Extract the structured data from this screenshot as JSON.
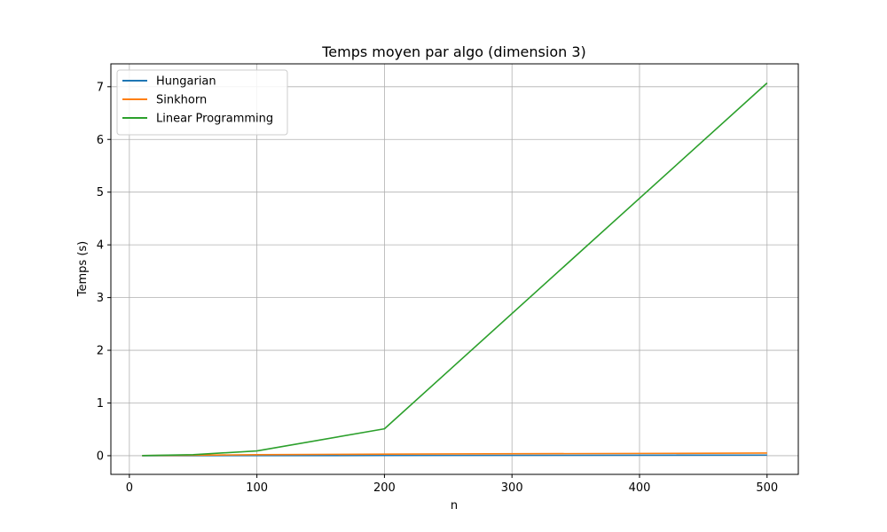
{
  "chart_data": {
    "type": "line",
    "title": "Temps moyen par algo (dimension 3)",
    "xlabel": "n",
    "ylabel": "Temps (s)",
    "x": [
      10,
      50,
      100,
      200,
      500
    ],
    "xticks": [
      0,
      100,
      200,
      300,
      400,
      500
    ],
    "yticks": [
      0,
      1,
      2,
      3,
      4,
      5,
      6,
      7
    ],
    "xlim": [
      -14.5,
      524.5
    ],
    "ylim": [
      -0.354,
      7.434
    ],
    "grid": true,
    "legend_position": "top-left",
    "series": [
      {
        "name": "Hungarian",
        "color": "#1f77b4",
        "values": [
          0.0003,
          0.001,
          0.002,
          0.004,
          0.012
        ]
      },
      {
        "name": "Sinkhorn",
        "color": "#ff7f0e",
        "values": [
          0.002,
          0.008,
          0.02,
          0.03,
          0.05
        ]
      },
      {
        "name": "Linear Programming",
        "color": "#2ca02c",
        "values": [
          0.003,
          0.02,
          0.09,
          0.51,
          7.07
        ]
      }
    ]
  }
}
